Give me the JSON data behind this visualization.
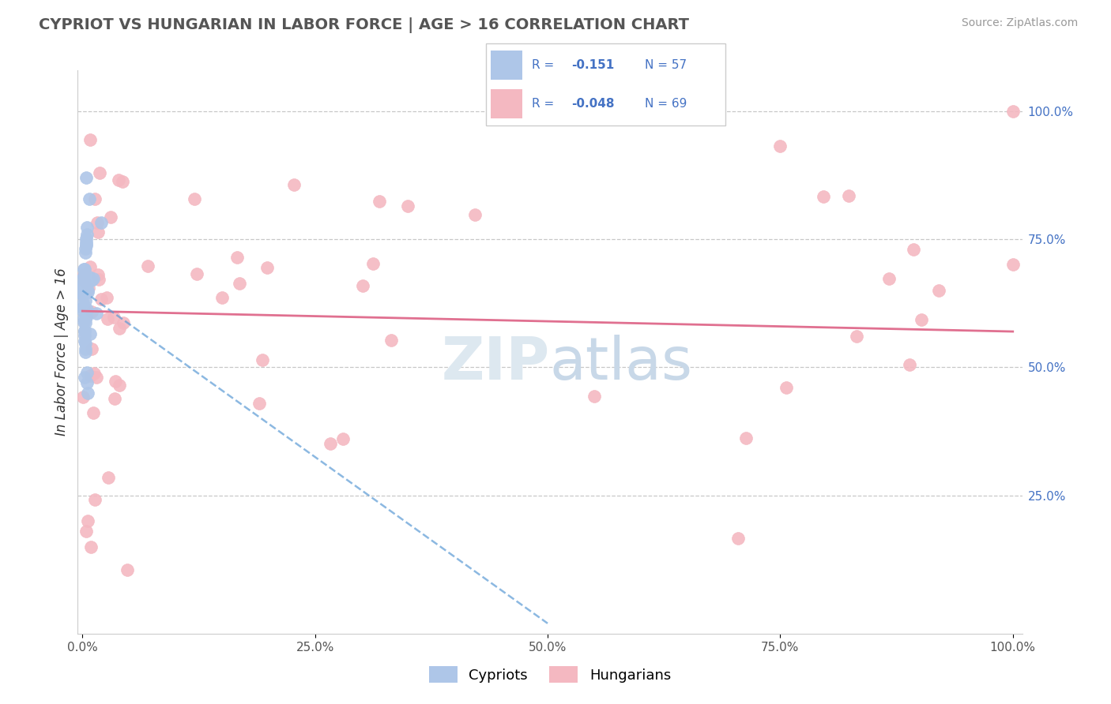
{
  "title": "CYPRIOT VS HUNGARIAN IN LABOR FORCE | AGE > 16 CORRELATION CHART",
  "source": "Source: ZipAtlas.com",
  "ylabel": "In Labor Force | Age > 16",
  "cypriot_color": "#aec6e8",
  "hungarian_color": "#f4b8c1",
  "cypriot_line_color": "#5b9bd5",
  "hungarian_line_color": "#e07090",
  "cypriot_R": -0.151,
  "cypriot_N": 57,
  "hungarian_R": -0.048,
  "hungarian_N": 69,
  "background_color": "#ffffff",
  "grid_color": "#c8c8c8",
  "right_axis_color": "#4472c4",
  "legend_color": "#4472c4",
  "watermark_color": "#dde8f0",
  "xmin": 0.0,
  "xmax": 100.0,
  "ymin": 0.0,
  "ymax": 100.0,
  "cypriot_scatter_seed": 10,
  "hungarian_scatter_seed": 20
}
